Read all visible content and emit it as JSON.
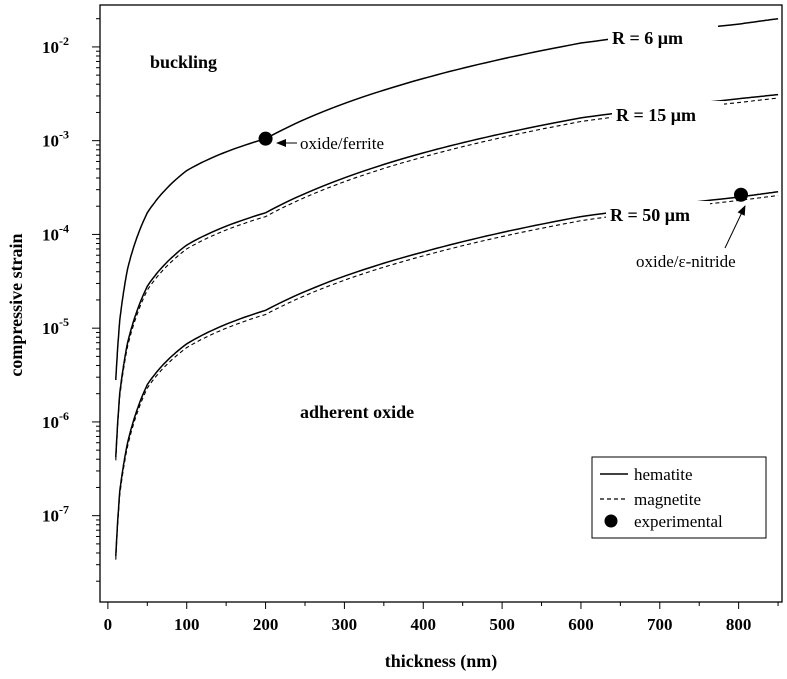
{
  "chart_data": {
    "type": "line",
    "xlabel": "thickness (nm)",
    "ylabel": "compressive strain",
    "xlim": [
      -10,
      855
    ],
    "ylim": [
      1.2e-08,
      0.028
    ],
    "y_scale": "log",
    "x_ticks": [
      0,
      100,
      200,
      300,
      400,
      500,
      600,
      700,
      800
    ],
    "x_tick_labels": [
      "0",
      "100",
      "200",
      "300",
      "400",
      "500",
      "600",
      "700",
      "800"
    ],
    "y_ticks": [
      {
        "base": "10",
        "exp": "-7",
        "value": 1e-07
      },
      {
        "base": "10",
        "exp": "-6",
        "value": 1e-06
      },
      {
        "base": "10",
        "exp": "-5",
        "value": 1e-05
      },
      {
        "base": "10",
        "exp": "-4",
        "value": 0.0001
      },
      {
        "base": "10",
        "exp": "-3",
        "value": 0.001
      },
      {
        "base": "10",
        "exp": "-2",
        "value": 0.01
      }
    ],
    "grid": false,
    "legend_position": "bottom-right",
    "legend": [
      {
        "label": "hematite",
        "style": "solid"
      },
      {
        "label": "magnetite",
        "style": "dashed"
      },
      {
        "label": "experimental",
        "style": "marker"
      }
    ],
    "series": [
      {
        "name": "hematite",
        "group": "R = 6 μm",
        "style": "solid",
        "x": [
          10,
          15,
          25,
          50,
          100,
          200,
          400,
          600,
          800,
          850
        ],
        "y": [
          2.8e-06,
          1.2e-05,
          4.3e-05,
          0.00017,
          0.00048,
          0.00105,
          0.0046,
          0.011,
          0.0175,
          0.02
        ]
      },
      {
        "name": "hematite",
        "group": "R = 15 μm",
        "style": "solid",
        "x": [
          10,
          15,
          25,
          50,
          100,
          200,
          400,
          600,
          800,
          850
        ],
        "y": [
          4.2e-07,
          2e-06,
          7e-06,
          2.8e-05,
          7.7e-05,
          0.00017,
          0.00074,
          0.00175,
          0.0028,
          0.0031
        ]
      },
      {
        "name": "magnetite",
        "group": "R = 15 μm",
        "style": "dashed",
        "x": [
          10,
          15,
          25,
          50,
          100,
          200,
          400,
          600,
          800,
          850
        ],
        "y": [
          3.9e-07,
          1.85e-06,
          6.4e-06,
          2.55e-05,
          7e-05,
          0.000155,
          0.00067,
          0.0016,
          0.00255,
          0.00285
        ]
      },
      {
        "name": "hematite",
        "group": "R = 50 μm",
        "style": "solid",
        "x": [
          10,
          15,
          25,
          50,
          100,
          200,
          400,
          600,
          800,
          850
        ],
        "y": [
          3.7e-08,
          1.8e-07,
          6e-07,
          2.5e-06,
          6.8e-06,
          1.55e-05,
          6.5e-05,
          0.000155,
          0.00025,
          0.000285
        ]
      },
      {
        "name": "magnetite",
        "group": "R = 50 μm",
        "style": "dashed",
        "x": [
          10,
          15,
          25,
          50,
          100,
          200,
          400,
          600,
          800,
          850
        ],
        "y": [
          3.4e-08,
          1.65e-07,
          5.5e-07,
          2.3e-06,
          6.2e-06,
          1.4e-05,
          5.9e-05,
          0.00014,
          0.00023,
          0.00026
        ]
      }
    ],
    "experimental_points": [
      {
        "x": 200,
        "y": 0.00105,
        "label": "oxide/ferrite"
      },
      {
        "x": 803,
        "y": 0.000265,
        "label": "oxide/ε-nitride"
      }
    ],
    "region_labels": [
      "buckling",
      "adherent oxide"
    ],
    "curve_labels": [
      "R = 6 μm",
      "R = 15 μm",
      "R = 50 μm"
    ]
  }
}
